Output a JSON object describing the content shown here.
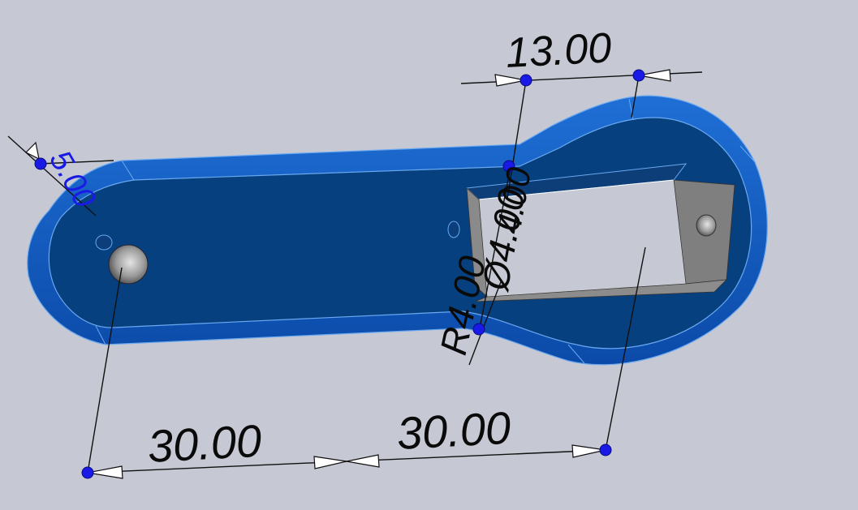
{
  "viewport": {
    "background": "#c6c9d3",
    "part_color": "#0a4a9a",
    "part_edge_color": "#6aa8f0",
    "cut_color": "#7a7a7a",
    "handle_color": "#1a1ae6"
  },
  "dimensions": {
    "width_top": "13.00",
    "spacing_left": "30.00",
    "spacing_right": "30.00",
    "thickness": "5.00",
    "cut_depth": "4.00",
    "fillet_radius": "R4.00",
    "diameter": "Ø4.00"
  }
}
